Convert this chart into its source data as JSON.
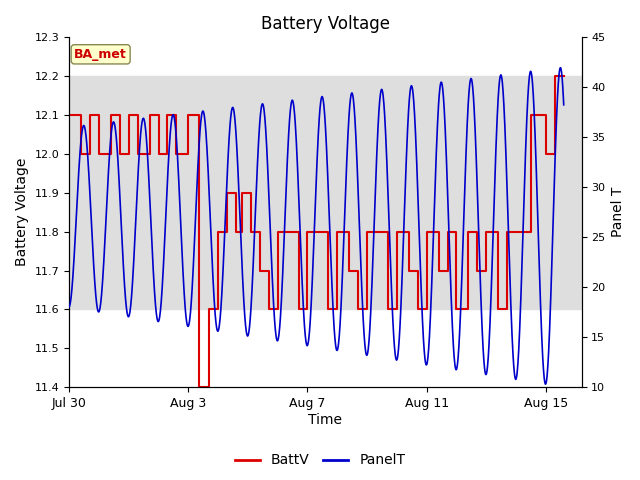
{
  "title": "Battery Voltage",
  "xlabel": "Time",
  "ylabel_left": "Battery Voltage",
  "ylabel_right": "Panel T",
  "ylim_left": [
    11.4,
    12.3
  ],
  "ylim_right": [
    10,
    45
  ],
  "yticks_left": [
    11.4,
    11.5,
    11.6,
    11.7,
    11.8,
    11.9,
    12.0,
    12.1,
    12.2,
    12.3
  ],
  "yticks_right": [
    10,
    15,
    20,
    25,
    30,
    35,
    40,
    45
  ],
  "xtick_labels": [
    "Jul 30",
    "Aug 3",
    "Aug 7",
    "Aug 11",
    "Aug 15"
  ],
  "xtick_pos": [
    0,
    4,
    8,
    12,
    16
  ],
  "xlim": [
    0,
    17.2
  ],
  "shade_ymin": 11.6,
  "shade_ymax": 12.2,
  "annotation_text": "BA_met",
  "annotation_color": "#cc0000",
  "annotation_bg": "#ffffcc",
  "annotation_border": "#888855",
  "line_color_batt": "#dd0000",
  "line_color_panel": "#0000cc",
  "background_color": "#ffffff",
  "shade_color": "#dedede",
  "legend_batt": "BattV",
  "legend_panel": "PanelT",
  "batt_x": [
    0.0,
    0.4,
    0.4,
    0.7,
    0.7,
    1.0,
    1.0,
    1.4,
    1.4,
    1.7,
    1.7,
    2.0,
    2.0,
    2.3,
    2.3,
    2.7,
    2.7,
    3.0,
    3.0,
    3.3,
    3.3,
    3.6,
    3.6,
    4.0,
    4.0,
    4.35,
    4.35,
    4.36,
    4.36,
    4.7,
    4.7,
    5.0,
    5.0,
    5.3,
    5.3,
    5.6,
    5.6,
    5.8,
    5.8,
    6.1,
    6.1,
    6.4,
    6.4,
    6.7,
    6.7,
    7.0,
    7.0,
    7.4,
    7.4,
    7.7,
    7.7,
    8.0,
    8.0,
    8.3,
    8.3,
    8.7,
    8.7,
    9.0,
    9.0,
    9.4,
    9.4,
    9.7,
    9.7,
    10.0,
    10.0,
    10.4,
    10.4,
    10.7,
    10.7,
    11.0,
    11.0,
    11.4,
    11.4,
    11.7,
    11.7,
    12.0,
    12.0,
    12.4,
    12.4,
    12.7,
    12.7,
    13.0,
    13.0,
    13.4,
    13.4,
    13.7,
    13.7,
    14.0,
    14.0,
    14.4,
    14.4,
    14.7,
    14.7,
    15.0,
    15.0,
    15.5,
    15.5,
    16.0,
    16.0,
    16.3,
    16.3,
    16.6
  ],
  "batt_y": [
    12.1,
    12.1,
    12.0,
    12.0,
    12.1,
    12.1,
    12.0,
    12.0,
    12.1,
    12.1,
    12.0,
    12.0,
    12.1,
    12.1,
    12.0,
    12.0,
    12.1,
    12.1,
    12.0,
    12.0,
    12.1,
    12.1,
    12.0,
    12.0,
    12.1,
    12.1,
    12.0,
    12.0,
    11.4,
    11.4,
    11.6,
    11.6,
    11.8,
    11.8,
    11.9,
    11.9,
    11.8,
    11.8,
    11.9,
    11.9,
    11.8,
    11.8,
    11.7,
    11.7,
    11.6,
    11.6,
    11.8,
    11.8,
    11.8,
    11.8,
    11.6,
    11.6,
    11.8,
    11.8,
    11.8,
    11.8,
    11.6,
    11.6,
    11.8,
    11.8,
    11.7,
    11.7,
    11.6,
    11.6,
    11.8,
    11.8,
    11.8,
    11.8,
    11.6,
    11.6,
    11.8,
    11.8,
    11.7,
    11.7,
    11.6,
    11.6,
    11.8,
    11.8,
    11.7,
    11.7,
    11.8,
    11.8,
    11.6,
    11.6,
    11.8,
    11.8,
    11.7,
    11.7,
    11.8,
    11.8,
    11.6,
    11.6,
    11.8,
    11.8,
    11.8,
    11.8,
    12.1,
    12.1,
    12.0,
    12.0,
    12.2,
    12.2
  ]
}
